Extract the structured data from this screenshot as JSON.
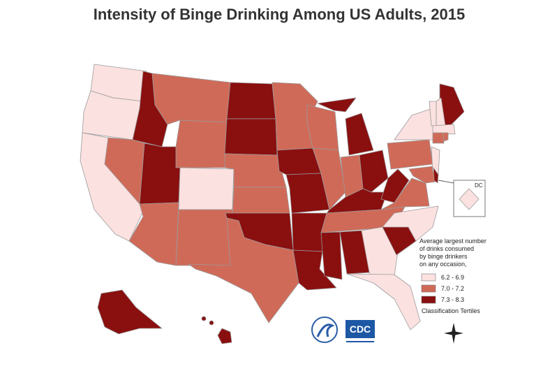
{
  "title": "Intensity of Binge Drinking Among US Adults, 2015",
  "legend": {
    "title_lines": [
      "Average largest number",
      "of drinks consumed",
      "by binge drinkers",
      "on any occasion,"
    ],
    "items": [
      {
        "label": "6.2 - 6.9",
        "color": "#fce1e1"
      },
      {
        "label": "7.0 - 7.2",
        "color": "#d06a58"
      },
      {
        "label": "7.3 - 8.3",
        "color": "#8a0f0f"
      }
    ],
    "note": "Classification Tertiles"
  },
  "inset_label": "DC",
  "logo_text": "CDC"
}
